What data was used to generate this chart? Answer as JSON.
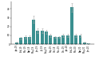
{
  "categories": [
    "Jan-19",
    "Feb-19",
    "Mar-19",
    "Apr-19",
    "May-19",
    "Jun-19",
    "Jul-19",
    "Aug-19",
    "Sep-19",
    "Oct-19",
    "Nov-19",
    "Dec-19",
    "Jan-20",
    "Feb-20",
    "Mar-20",
    "Apr-20",
    "May-20",
    "Jun-20"
  ],
  "values": [
    2,
    7,
    8,
    8,
    28,
    15,
    15,
    14,
    10,
    8,
    8,
    10,
    10,
    42,
    10,
    10,
    2,
    1
  ],
  "bar_color": "#3a9090",
  "error_color": "#aaaaaa",
  "errors": [
    0.3,
    1.2,
    1.5,
    1.5,
    4,
    2.5,
    2.5,
    2.5,
    1.5,
    1.2,
    1.2,
    1.5,
    1.5,
    5,
    1.5,
    1.5,
    0.3,
    0.2
  ],
  "ylim": [
    0,
    48
  ],
  "yticks": [
    0,
    10,
    20,
    30,
    40
  ],
  "background_color": "#ffffff"
}
